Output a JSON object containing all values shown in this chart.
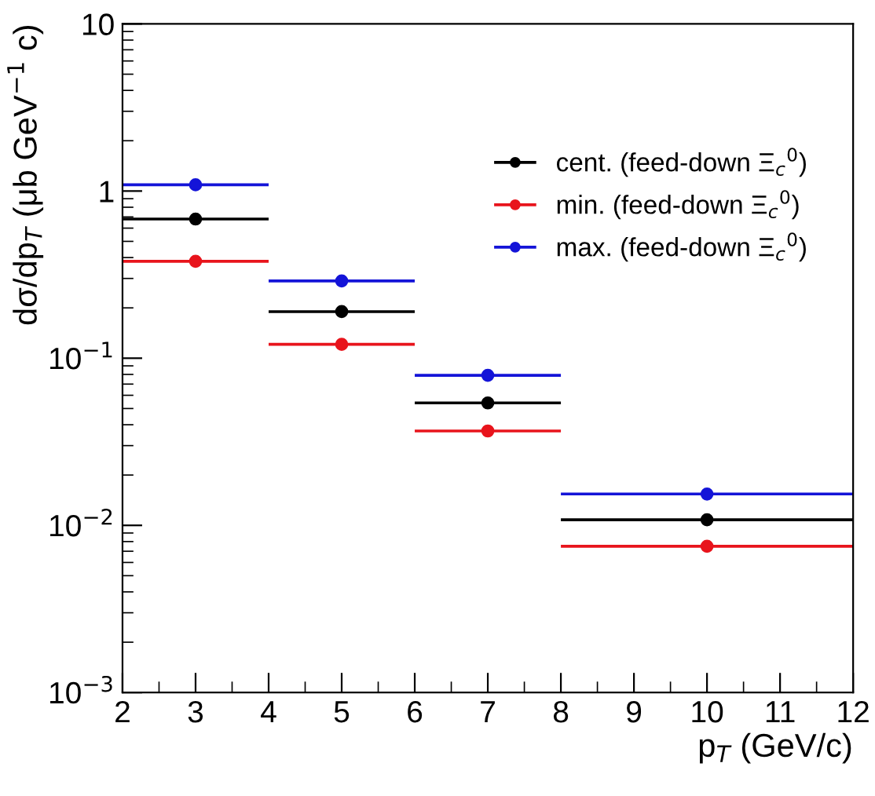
{
  "chart_data": {
    "type": "scatter",
    "xlabel": "p$_{T}$ (GeV/c)",
    "ylabel": "dσ/dp$_{T}$ (μb GeV$^{−1}$ c)",
    "x": [
      3,
      5,
      7,
      10
    ],
    "series": [
      {
        "name": "cent. (feed-down Ξ$_{c}$$^{0}$)",
        "color": "#000000",
        "values": [
          0.68,
          0.19,
          0.054,
          0.0108
        ],
        "xerrors": [
          1,
          1,
          1,
          2
        ]
      },
      {
        "name": "min. (feed-down Ξ$_{c}$$^{0}$)",
        "color": "#e8141c",
        "values": [
          0.38,
          0.121,
          0.0367,
          0.0075
        ],
        "xerrors": [
          1,
          1,
          1,
          2
        ]
      },
      {
        "name": "max. (feed-down Ξ$_{c}$$^{0}$)",
        "color": "#1414d8",
        "values": [
          1.09,
          0.29,
          0.079,
          0.0154
        ],
        "xerrors": [
          1,
          1,
          1,
          2
        ]
      }
    ],
    "log": "y",
    "xlim": [
      2,
      12
    ],
    "xticks": [
      2,
      3,
      4,
      5,
      6,
      7,
      8,
      9,
      10,
      11,
      12
    ],
    "ylim": [
      0.001,
      10
    ],
    "yticks": [
      {
        "value": 0.001,
        "label": "10$^{−3}$"
      },
      {
        "value": 0.01,
        "label": "10$^{−2}$"
      },
      {
        "value": 0.1,
        "label": "10$^{−1}$"
      },
      1,
      10
    ],
    "marker": "circle",
    "grid": false,
    "legend": "top right"
  }
}
